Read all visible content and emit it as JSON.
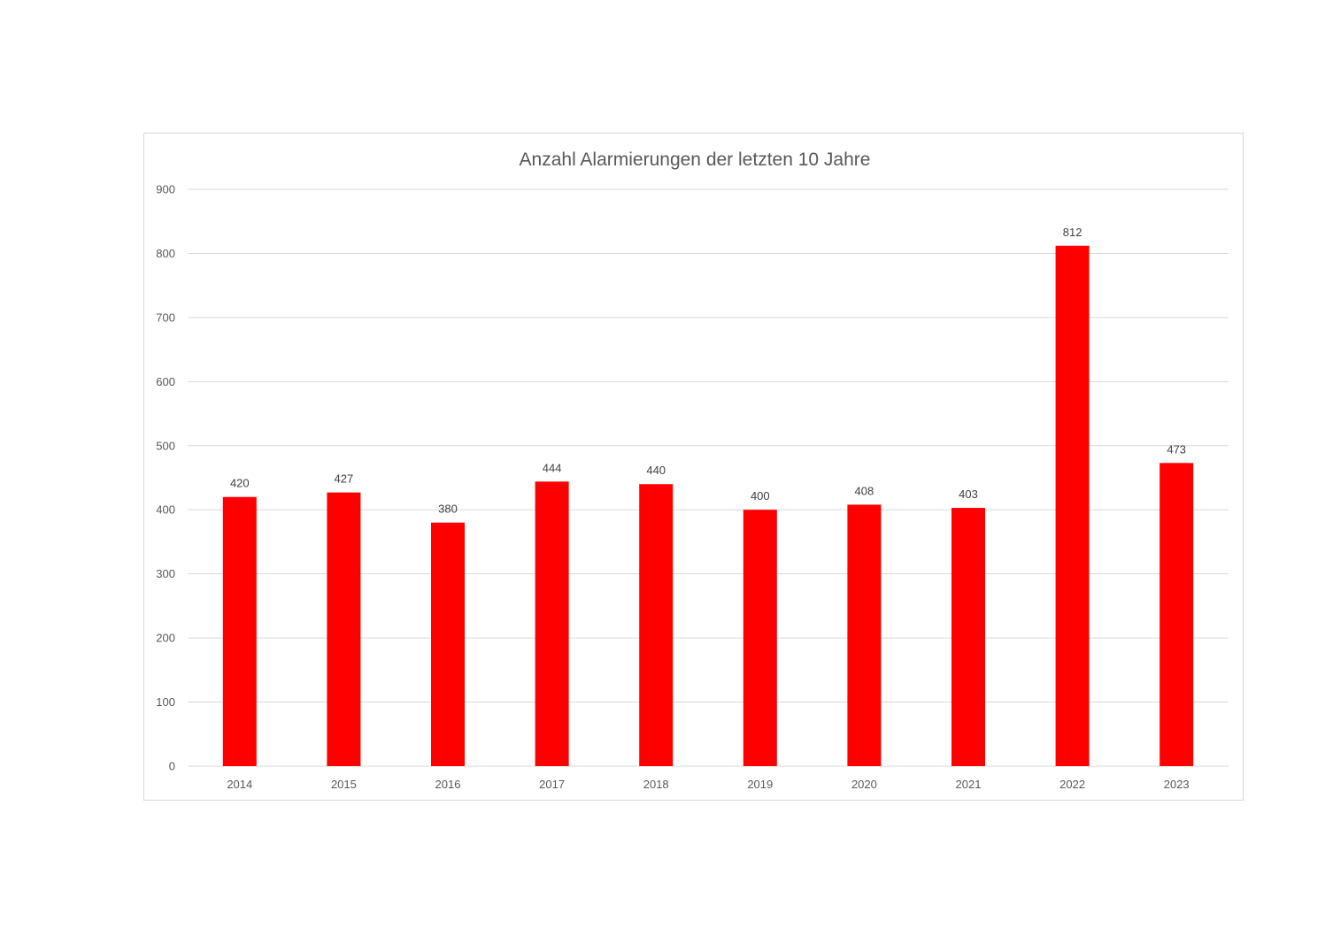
{
  "chart_data": {
    "type": "bar",
    "title": "Anzahl Alarmierungen der letzten 10 Jahre",
    "xlabel": "",
    "ylabel": "",
    "categories": [
      "2014",
      "2015",
      "2016",
      "2017",
      "2018",
      "2019",
      "2020",
      "2021",
      "2022",
      "2023"
    ],
    "values": [
      420,
      427,
      380,
      444,
      440,
      400,
      408,
      403,
      812,
      473
    ],
    "data_labels": [
      "420",
      "427",
      "380",
      "444",
      "440",
      "400",
      "408",
      "403",
      "812",
      "473"
    ],
    "ylim": [
      0,
      900
    ],
    "y_ticks": [
      0,
      100,
      200,
      300,
      400,
      500,
      600,
      700,
      800,
      900
    ],
    "y_tick_labels": [
      "0",
      "100",
      "200",
      "300",
      "400",
      "500",
      "600",
      "700",
      "800",
      "900"
    ],
    "grid": true,
    "legend": "none",
    "bar_color": "#ff0000"
  }
}
